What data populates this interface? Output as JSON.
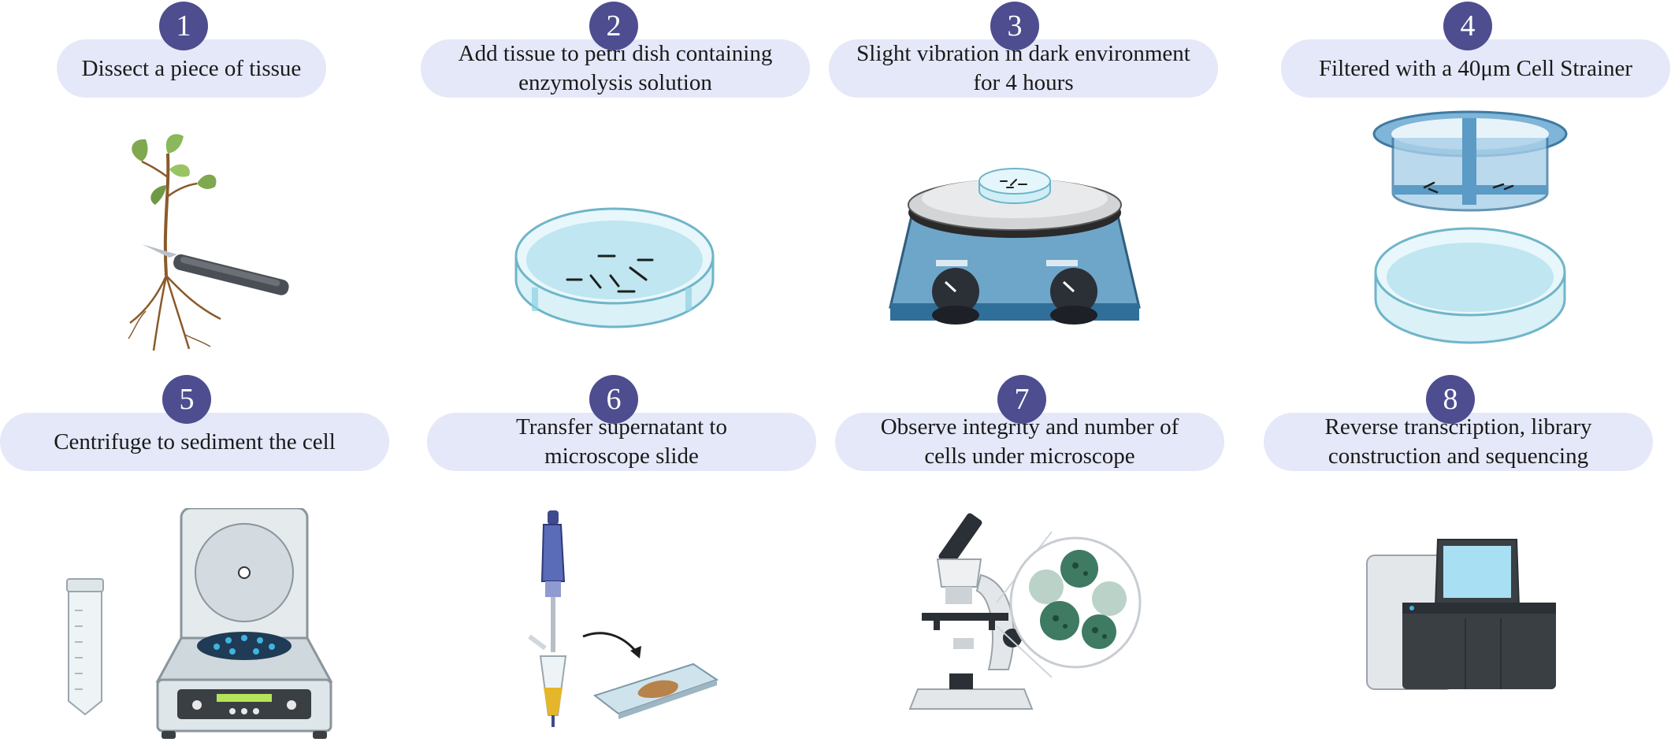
{
  "accent": "#4d4d8f",
  "pill_color": "#e4e8f8",
  "steps": [
    {
      "number": "1",
      "lines": [
        "Dissect a piece of tissue"
      ],
      "icon": "plant-with-scalpel-icon"
    },
    {
      "number": "2",
      "lines": [
        "Add tissue to petri dish containing",
        "enzymolysis solution"
      ],
      "icon": "petri-dish-icon"
    },
    {
      "number": "3",
      "lines": [
        "Slight vibration in dark environment",
        "for 4 hours"
      ],
      "icon": "shaker-icon"
    },
    {
      "number": "4",
      "lines": [
        "Filtered with a 40μm Cell Strainer"
      ],
      "icon": "cell-strainer-icon"
    },
    {
      "number": "5",
      "lines": [
        "Centrifuge to sediment the cell"
      ],
      "icon": "centrifuge-icon"
    },
    {
      "number": "6",
      "lines": [
        "Transfer supernatant to",
        "microscope slide"
      ],
      "icon": "pipette-slide-icon"
    },
    {
      "number": "7",
      "lines": [
        "Observe integrity and number of",
        "cells under microscope"
      ],
      "icon": "microscope-icon"
    },
    {
      "number": "8",
      "lines": [
        "Reverse transcription, library",
        "construction and sequencing"
      ],
      "icon": "sequencer-icon"
    }
  ]
}
